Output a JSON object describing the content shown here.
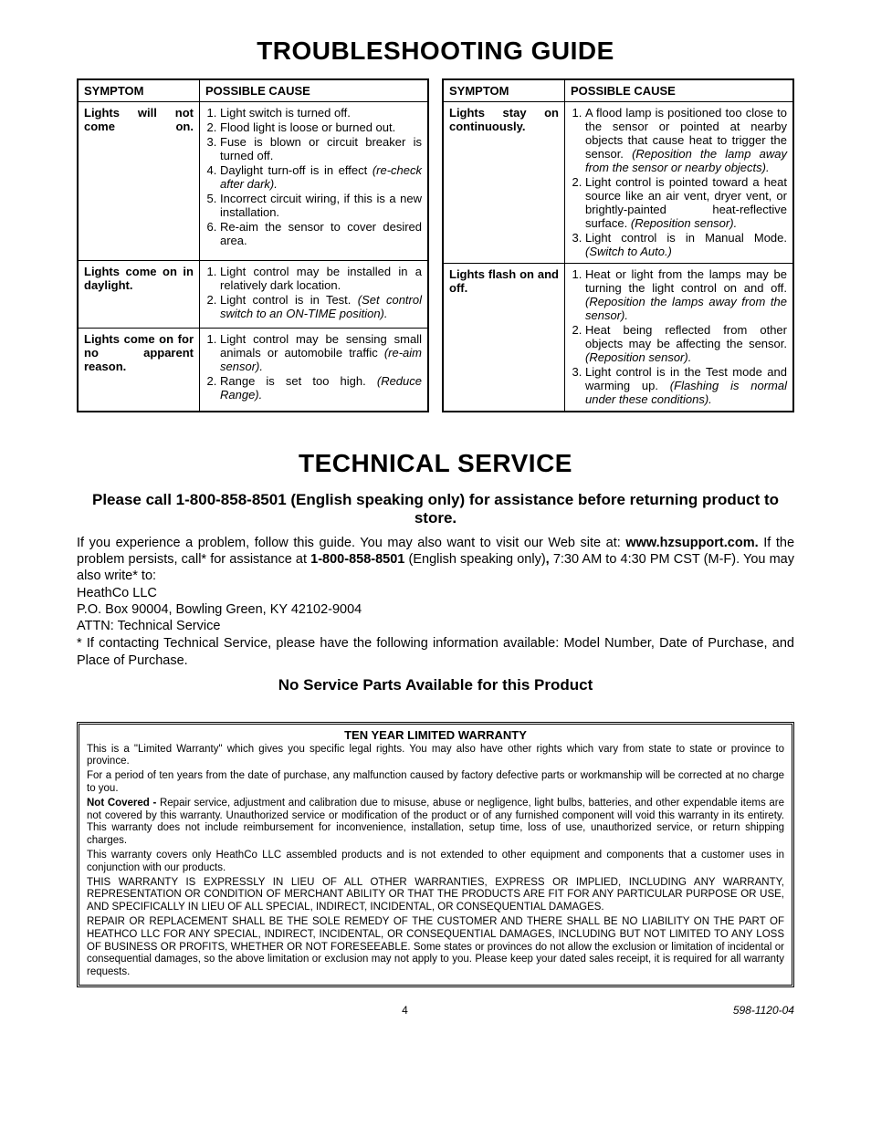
{
  "title1": "TROUBLESHOOTING GUIDE",
  "headers": {
    "symptom": "SYMPTOM",
    "cause": "POSSIBLE CAUSE"
  },
  "tableLeft": [
    {
      "symptom": "Lights will not come on.",
      "causes": [
        {
          "t": "Light switch is turned off."
        },
        {
          "t": "Flood light is loose or burned out."
        },
        {
          "t": "Fuse is blown or circuit breaker is turned off."
        },
        {
          "t": "Daylight turn-off is in effect ",
          "i": "(re-check after dark)."
        },
        {
          "t": "Incorrect circuit wiring, if this is a new installation."
        },
        {
          "t": "Re-aim the sensor to cover desired area."
        }
      ]
    },
    {
      "symptom": "Lights come on in daylight.",
      "causes": [
        {
          "t": "Light control may be installed in a relatively dark location."
        },
        {
          "t": "Light control is in Test. ",
          "i": "(Set control switch to an ON-TIME position)."
        }
      ]
    },
    {
      "symptom": "Lights come on for no apparent reason.",
      "causes": [
        {
          "t": "Light control may be sensing small animals or automobile traffic ",
          "i": "(re-aim sensor)."
        },
        {
          "t": "Range is set too high. ",
          "i": "(Reduce Range)."
        }
      ]
    }
  ],
  "tableRight": [
    {
      "symptom": "Lights stay on continuously.",
      "causes": [
        {
          "t": "A flood lamp is positioned too close to the sensor or pointed at nearby objects that cause heat to trigger the sensor. ",
          "i": "(Reposition the lamp away from the sensor or nearby objects)."
        },
        {
          "t": "Light control is pointed toward a heat source like an air vent, dryer vent, or brightly-painted heat-reflective surface. ",
          "i": "(Reposition sensor)."
        },
        {
          "t": "Light control is in Manual Mode. ",
          "i": "(Switch to Auto.)"
        }
      ]
    },
    {
      "symptom": "Lights flash on and off.",
      "causes": [
        {
          "t": "Heat or light from the lamps may be turning the light control on and off. ",
          "i": "(Reposition the lamps away from the sensor)."
        },
        {
          "t": "Heat being reflected from other objects may be affecting the sensor. ",
          "i": "(Reposition sensor)."
        },
        {
          "t": "Light control is in the Test mode and warming up. ",
          "i": "(Flashing is normal under these conditions)."
        }
      ]
    }
  ],
  "title2": "TECHNICAL SERVICE",
  "techSub": "Please call 1-800-858-8501 (English speaking only) for assistance before returning product to store.",
  "tech": {
    "p1a": "If you experience a problem, follow this guide. You may also want to visit our Web site at: ",
    "p1b": "www.hzsupport.com.",
    "p2a": "If the problem persists, call* for assistance at ",
    "p2b": "1-800-858-8501",
    "p2c": " (English speaking only)",
    "p2comma": ",",
    "p2d": " 7:30 AM to 4:30 PM CST (M-F). You may also write* to:",
    "addr1": "HeathCo LLC",
    "addr2": "P.O. Box 90004, Bowling Green, KY 42102-9004",
    "addr3": "ATTN: Technical Service",
    "p3": "* If contacting Technical Service, please have the following information available: Model Number, Date of Purchase, and Place of Purchase."
  },
  "noservice": "No Service Parts Available for this Product",
  "warranty": {
    "title": "TEN YEAR LIMITED WARRANTY",
    "p1": "This is a \"Limited Warranty\" which gives you specific legal rights. You may also have other rights which vary from state to state or province to province.",
    "p2": "For a period of ten years from the date of purchase, any malfunction caused by factory defective parts or workmanship will be corrected at no charge to you.",
    "p3a": "Not Covered - ",
    "p3b": "Repair service, adjustment and calibration due to misuse, abuse or negligence, light bulbs, batteries, and other expendable items are not covered by this warranty. Unauthorized service or modification of the product or of any furnished component will void this warranty in its entirety. This warranty does not include reimbursement for inconvenience, installation, setup time, loss of use, unauthorized service, or return shipping charges.",
    "p4": "This warranty covers only HeathCo LLC assembled products and is not extended to other equipment and components that a customer uses in conjunction with our products.",
    "p5": "THIS WARRANTY IS EXPRESSLY IN LIEU OF ALL OTHER WARRANTIES, EXPRESS OR IMPLIED, INCLUDING ANY WARRANTY, REPRESENTATION OR CONDITION OF MERCHANT ABILITY OR THAT THE PRODUCTS ARE FIT FOR ANY PARTICULAR PURPOSE OR USE, AND SPECIFICALLY IN LIEU OF ALL SPECIAL, INDIRECT, INCIDENTAL, OR CONSEQUENTIAL DAMAGES.",
    "p6": "REPAIR OR REPLACEMENT SHALL BE THE SOLE REMEDY OF THE CUSTOMER AND THERE SHALL BE NO LIABILITY ON THE PART OF HEATHCO LLC FOR ANY SPECIAL, INDIRECT, INCIDENTAL, OR CONSEQUENTIAL DAMAGES, INCLUDING BUT NOT LIMITED TO ANY LOSS OF BUSINESS OR PROFITS, WHETHER OR NOT FORESEEABLE. Some states or provinces do not allow the exclusion or limitation of incidental or consequential damages, so the above limitation or exclusion may not apply to you. Please keep your dated sales receipt, it is required for all warranty requests."
  },
  "footer": {
    "page": "4",
    "doc": "598-1120-04"
  }
}
